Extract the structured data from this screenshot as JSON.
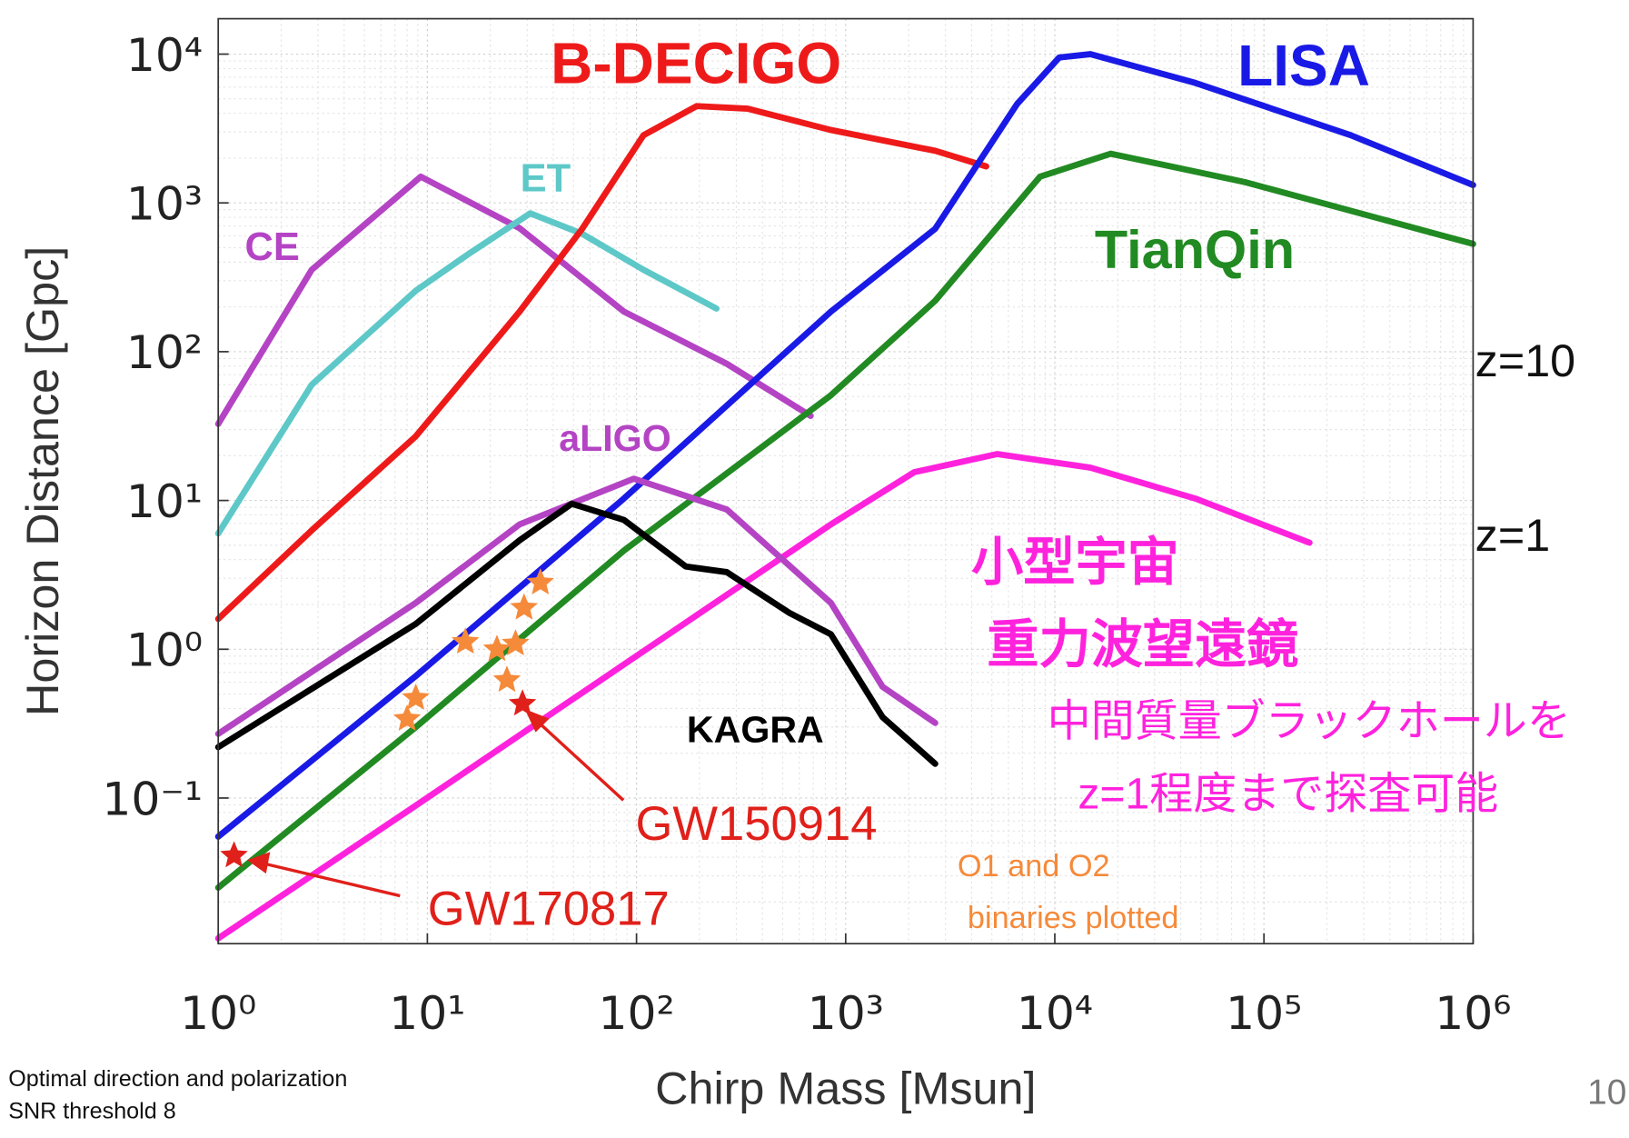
{
  "chart_data": {
    "type": "line",
    "xlabel": "Chirp Mass [Msun]",
    "ylabel": "Horizon Distance [Gpc]",
    "xlog": true,
    "ylog": true,
    "grid": true,
    "xlim": [
      1,
      1000000
    ],
    "ylim": [
      0.0105,
      17300
    ],
    "xticks": [
      {
        "value": 1,
        "label": "10⁰"
      },
      {
        "value": 10,
        "label": "10¹"
      },
      {
        "value": 100,
        "label": "10²"
      },
      {
        "value": 1000,
        "label": "10³"
      },
      {
        "value": 10000,
        "label": "10⁴"
      },
      {
        "value": 100000,
        "label": "10⁵"
      },
      {
        "value": 1000000,
        "label": "10⁶"
      }
    ],
    "yticks": [
      {
        "value": 0.1,
        "label": "10⁻¹"
      },
      {
        "value": 1,
        "label": "10⁰"
      },
      {
        "value": 10,
        "label": "10¹"
      },
      {
        "value": 100,
        "label": "10²"
      },
      {
        "value": 1000,
        "label": "10³"
      },
      {
        "value": 10000,
        "label": "10⁴"
      }
    ],
    "series": [
      {
        "name": "CE",
        "color": "#b444c4",
        "x": [
          1,
          2.8,
          9.3,
          27.6,
          87,
          270,
          680
        ],
        "values": [
          32.7,
          355,
          1500,
          676,
          186,
          83,
          37
        ]
      },
      {
        "name": "ET",
        "color": "#5ec8c8",
        "x": [
          1,
          2.8,
          8.8,
          15.6,
          31,
          55,
          108,
          241
        ],
        "values": [
          6,
          60,
          257,
          450,
          850,
          620,
          355,
          195
        ]
      },
      {
        "name": "B-DECIGO",
        "color": "#ee1a1a",
        "x": [
          1,
          2.8,
          8.8,
          27.6,
          55,
          108,
          194,
          340,
          850,
          2680,
          4700
        ],
        "values": [
          1.6,
          6.3,
          27,
          186,
          670,
          2850,
          4470,
          4300,
          3090,
          2240,
          1760
        ]
      },
      {
        "name": "LISA",
        "color": "#1a1ae6",
        "x": [
          1,
          8.8,
          87,
          850,
          2680,
          6600,
          10500,
          14800,
          47000,
          260000,
          1000000
        ],
        "values": [
          0.055,
          0.66,
          10.3,
          186,
          670,
          4620,
          9500,
          10000,
          6400,
          2850,
          1320
        ]
      },
      {
        "name": "TianQin",
        "color": "#228a22",
        "x": [
          1,
          8.8,
          87,
          850,
          2680,
          8500,
          18500,
          81000,
          1000000
        ],
        "values": [
          0.025,
          0.3,
          4.6,
          51,
          220,
          1500,
          2140,
          1380,
          530
        ]
      },
      {
        "color": "#ff22dd",
        "x": [
          1,
          8.8,
          87,
          850,
          2130,
          5300,
          14800,
          47000,
          165000
        ],
        "values": [
          0.0114,
          0.089,
          0.79,
          6.9,
          15.5,
          20.5,
          16.6,
          10.3,
          5.2
        ]
      },
      {
        "name": "aLIGO",
        "color": "#b444c4",
        "x": [
          1,
          8.8,
          27.6,
          97,
          270,
          850,
          1500,
          2680
        ],
        "values": [
          0.27,
          2.05,
          6.9,
          14,
          8.7,
          2.05,
          0.56,
          0.32
        ]
      },
      {
        "name": "KAGRA",
        "color": "#000000",
        "x": [
          1,
          8.8,
          27.6,
          49,
          87,
          172,
          270,
          540,
          850,
          1500,
          2680
        ],
        "values": [
          0.22,
          1.48,
          5.4,
          9.5,
          7.4,
          3.6,
          3.3,
          1.75,
          1.26,
          0.35,
          0.17
        ]
      }
    ],
    "events": {
      "color": "#f58a3a",
      "x": [
        8.0,
        8.8,
        15.2,
        21.5,
        26.4,
        24,
        29,
        34.7
      ],
      "values": [
        0.34,
        0.47,
        1.12,
        1.0,
        1.09,
        0.62,
        1.9,
        2.8
      ]
    },
    "highlighted_events": {
      "color": "#e0201a",
      "names": [
        "GW150914",
        "GW170817"
      ],
      "x": [
        28.5,
        1.19
      ],
      "values": [
        0.43,
        0.041
      ]
    },
    "annotations": [
      "小型宇宙",
      "重力波望遠鏡",
      "中間質量ブラックホールを",
      "z=1程度まで探査可能",
      "O1 and O2",
      "binaries plotted",
      "z=10",
      "z=1",
      "10"
    ],
    "footnotes": [
      "Optimal direction and polarization",
      "SNR threshold 8"
    ]
  }
}
